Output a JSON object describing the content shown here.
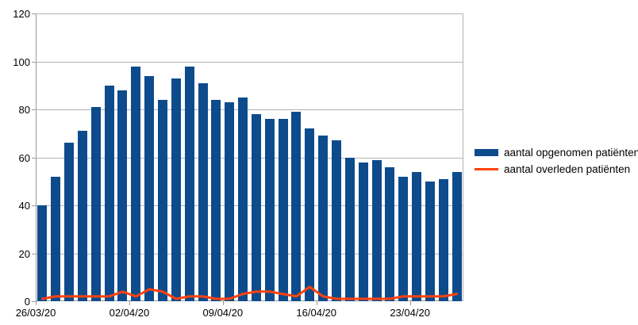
{
  "chart_data": {
    "type": "bar",
    "title": "",
    "xlabel": "",
    "ylabel": "",
    "categories": [
      "26/03/20",
      "27/03/20",
      "28/03/20",
      "29/03/20",
      "30/03/20",
      "31/03/20",
      "01/04/20",
      "02/04/20",
      "03/04/20",
      "04/04/20",
      "05/04/20",
      "06/04/20",
      "07/04/20",
      "08/04/20",
      "09/04/20",
      "10/04/20",
      "11/04/20",
      "12/04/20",
      "13/04/20",
      "14/04/20",
      "15/04/20",
      "16/04/20",
      "17/04/20",
      "18/04/20",
      "19/04/20",
      "20/04/20",
      "21/04/20",
      "22/04/20",
      "23/04/20",
      "24/04/20",
      "25/04/20",
      "26/04/20"
    ],
    "series": [
      {
        "name": "aantal opgenomen patiënten",
        "type": "bar",
        "color": "#0E4B8C",
        "values": [
          40,
          52,
          66,
          71,
          81,
          90,
          88,
          98,
          94,
          84,
          93,
          98,
          91,
          84,
          83,
          85,
          78,
          76,
          76,
          79,
          72,
          69,
          67,
          60,
          58,
          59,
          56,
          52,
          54,
          50,
          51,
          54
        ]
      },
      {
        "name": "aantal overleden patiënten",
        "type": "line",
        "color": "#FF420E",
        "values": [
          1,
          2,
          2,
          2,
          2,
          2,
          4,
          2,
          5,
          4,
          1,
          2,
          2,
          1,
          1,
          3,
          4,
          4,
          3,
          2,
          6,
          2,
          1,
          1,
          1,
          1,
          1,
          2,
          2,
          2,
          2,
          3
        ]
      }
    ],
    "ylim": [
      0,
      120
    ],
    "yticks": [
      "0",
      "20",
      "40",
      "60",
      "80",
      "100",
      "120"
    ],
    "xticks": [
      {
        "index": 0,
        "label": "26/03/20"
      },
      {
        "index": 7,
        "label": "02/04/20"
      },
      {
        "index": 14,
        "label": "09/04/20"
      },
      {
        "index": 21,
        "label": "16/04/20"
      },
      {
        "index": 28,
        "label": "23/04/20"
      }
    ],
    "grid": true,
    "legend_position": "right"
  },
  "styles": {
    "bar_color": "#0E4B8C",
    "line_color": "#FF420E",
    "grid_color": "#b3b3b3",
    "axis_color": "#9a9a9a",
    "text_color": "#000000",
    "background": "#ffffff"
  }
}
